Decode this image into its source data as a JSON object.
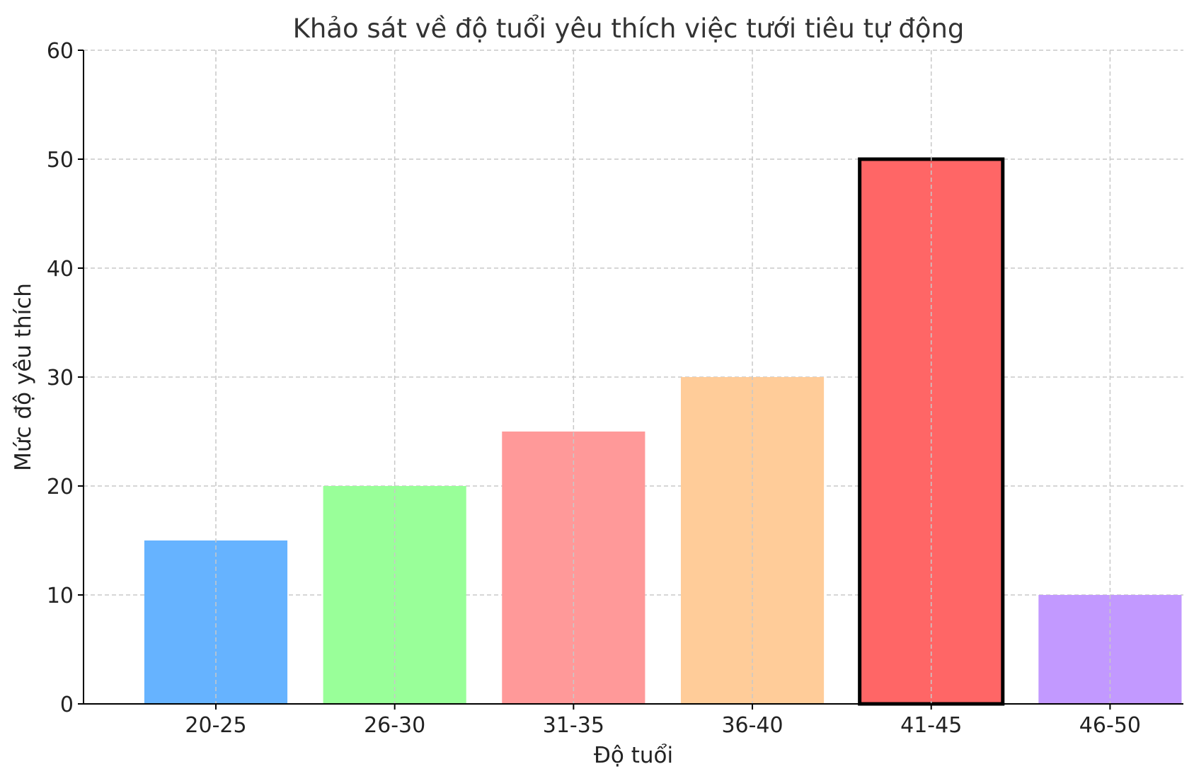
{
  "chart_data": {
    "type": "bar",
    "title": "Khảo sát về độ tuổi yêu thích việc tưới tiêu tự động",
    "xlabel": "Độ tuổi",
    "ylabel": "Mức độ yêu thích",
    "categories": [
      "20-25",
      "26-30",
      "31-35",
      "36-40",
      "41-45",
      "46-50"
    ],
    "values": [
      15,
      20,
      25,
      30,
      50,
      10
    ],
    "colors": [
      "#66b3ff",
      "#99ff99",
      "#ff9999",
      "#ffcc99",
      "#ff6666",
      "#c299ff"
    ],
    "highlight_index": 4,
    "highlight_edge_color": "#000000",
    "ylim": [
      0,
      60
    ],
    "yticks": [
      0,
      10,
      20,
      30,
      40,
      50,
      60
    ],
    "grid": true
  }
}
